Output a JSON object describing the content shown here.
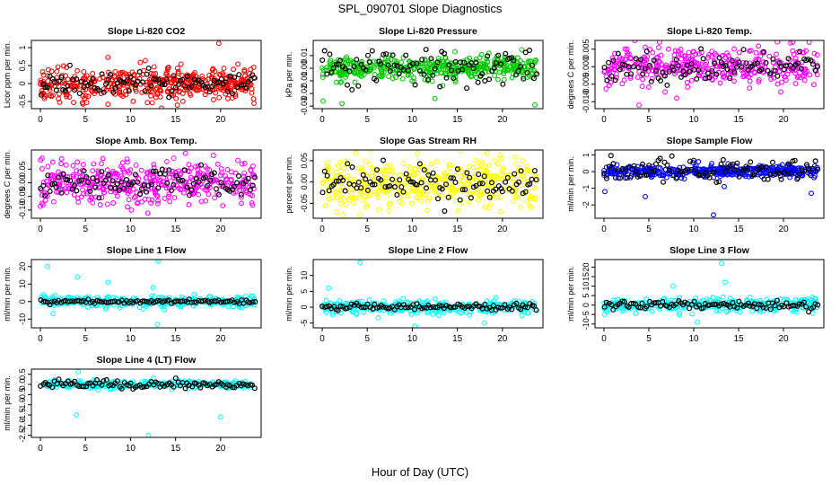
{
  "figure": {
    "title": "SPL_090701  Slope Diagnostics",
    "xlabel": "Hour of Day (UTC)"
  },
  "chart_data": [
    {
      "type": "scatter",
      "title": "Slope Li-820 CO2",
      "ylabel": "Licor ppm per min.",
      "color": "#ff0000",
      "xlim": [
        -1,
        24.5
      ],
      "ylim": [
        -0.7,
        1.2
      ],
      "xticks": [
        0,
        5,
        10,
        15,
        20
      ],
      "yticks": [
        -0.5,
        0,
        0.5,
        1
      ],
      "ytick_labels": [
        "-0.5",
        "0",
        "0.5",
        "1"
      ],
      "noise": 0.22,
      "n": 420,
      "outliers": [
        {
          "x": 19.8,
          "y": 1.12
        },
        {
          "x": 7.5,
          "y": -0.58
        },
        {
          "x": 15.2,
          "y": -0.6
        },
        {
          "x": 23.7,
          "y": -0.55
        }
      ],
      "black_noise": 0.16
    },
    {
      "type": "scatter",
      "title": "Slope Li-820 Pressure",
      "ylabel": "kPa per min.",
      "color": "#00cc00",
      "xlim": [
        -1,
        24.5
      ],
      "ylim": [
        -0.032,
        0.022
      ],
      "xticks": [
        0,
        5,
        10,
        15,
        20
      ],
      "yticks": [
        -0.03,
        -0.02,
        -0.01,
        0,
        0.01
      ],
      "ytick_labels": [
        "-0.03",
        "-0.02",
        "-0.01",
        "0.00",
        "0.01"
      ],
      "noise": 0.0045,
      "n": 420,
      "outliers": [
        {
          "x": 0.1,
          "y": -0.026
        },
        {
          "x": 2.2,
          "y": -0.028
        },
        {
          "x": 23.6,
          "y": -0.029
        },
        {
          "x": 12.5,
          "y": -0.024
        }
      ],
      "black_noise": 0.007
    },
    {
      "type": "scatter",
      "title": "Slope Li-820 Temp.",
      "ylabel": "degrees C per min.",
      "color": "#ff00ff",
      "xlim": [
        -1,
        24.5
      ],
      "ylim": [
        -0.012,
        0.0075
      ],
      "xticks": [
        0,
        5,
        10,
        15,
        20
      ],
      "yticks": [
        -0.01,
        -0.005,
        0,
        0.005
      ],
      "ytick_labels": [
        "-0.010",
        "-0.005",
        "0.000",
        "0.005"
      ],
      "noise": 0.0026,
      "n": 380,
      "outliers": [
        {
          "x": 6.2,
          "y": 0.007
        },
        {
          "x": 3.9,
          "y": -0.011
        },
        {
          "x": 8.1,
          "y": -0.009
        }
      ],
      "black_noise": 0.0022
    },
    {
      "type": "scatter",
      "title": "Slope Amb. Box Temp.",
      "ylabel": "degrees C per min.",
      "color": "#ff00ff",
      "xlim": [
        -1,
        24.5
      ],
      "ylim": [
        -0.13,
        0.12
      ],
      "xticks": [
        0,
        5,
        10,
        15,
        20
      ],
      "yticks": [
        -0.1,
        -0.05,
        0,
        0.05
      ],
      "ytick_labels": [
        "-0.10",
        "-0.05",
        "0.00",
        "0.05"
      ],
      "noise": 0.038,
      "n": 400,
      "outliers": [
        {
          "x": 0.2,
          "y": 0.09
        },
        {
          "x": 19.2,
          "y": 0.1
        },
        {
          "x": 10.1,
          "y": -0.1
        }
      ],
      "black_noise": 0.03
    },
    {
      "type": "scatter",
      "title": "Slope Gas Stream RH",
      "ylabel": "percent per min.",
      "color": "#ffff00",
      "xlim": [
        -1,
        24.5
      ],
      "ylim": [
        -0.085,
        0.075
      ],
      "xticks": [
        0,
        5,
        10,
        15,
        20
      ],
      "yticks": [
        -0.05,
        0,
        0.05
      ],
      "ytick_labels": [
        "-0.05",
        "0.00",
        "0.05"
      ],
      "noise": 0.028,
      "n": 400,
      "outliers": [
        {
          "x": 18.3,
          "y": 0.068
        },
        {
          "x": 4.2,
          "y": -0.078
        },
        {
          "x": 23.2,
          "y": -0.06
        }
      ],
      "black_noise": 0.02
    },
    {
      "type": "scatter",
      "title": "Slope Sample Flow",
      "ylabel": "ml/min per min.",
      "color": "#0000ff",
      "xlim": [
        -1,
        24.5
      ],
      "ylim": [
        -2.8,
        1.3
      ],
      "xticks": [
        0,
        5,
        10,
        15,
        20
      ],
      "yticks": [
        -2,
        -1,
        0,
        1
      ],
      "ytick_labels": [
        "-2",
        "-1",
        "0",
        "1"
      ],
      "noise": 0.18,
      "n": 400,
      "outliers": [
        {
          "x": 0.1,
          "y": -1.2
        },
        {
          "x": 12.2,
          "y": -2.6
        },
        {
          "x": 4.6,
          "y": -1.5
        },
        {
          "x": 23.1,
          "y": -1.3
        },
        {
          "x": 13.4,
          "y": -0.9
        }
      ],
      "black_noise": 0.35
    },
    {
      "type": "scatter",
      "title": "Slope Line 1 Flow",
      "ylabel": "ml/min per min.",
      "color": "#00ffff",
      "xlim": [
        -1,
        24.5
      ],
      "ylim": [
        -15,
        24
      ],
      "xticks": [
        0,
        5,
        10,
        15,
        20
      ],
      "yticks": [
        -10,
        0,
        10,
        20
      ],
      "ytick_labels": [
        "-10",
        "0",
        "10",
        "20"
      ],
      "noise": 1.6,
      "n": 300,
      "outliers": [
        {
          "x": 0.8,
          "y": 20
        },
        {
          "x": 4.1,
          "y": 14
        },
        {
          "x": 13.1,
          "y": 23
        },
        {
          "x": 13.0,
          "y": -13
        },
        {
          "x": 12.5,
          "y": 8
        },
        {
          "x": 7.5,
          "y": 11
        },
        {
          "x": 1.4,
          "y": -7
        }
      ],
      "black_noise": 0.5
    },
    {
      "type": "scatter",
      "title": "Slope Line 2 Flow",
      "ylabel": "ml/min per min.",
      "color": "#00ffff",
      "xlim": [
        -1,
        24.5
      ],
      "ylim": [
        -6.5,
        15
      ],
      "xticks": [
        0,
        5,
        10,
        15,
        20
      ],
      "yticks": [
        -5,
        0,
        5,
        10
      ],
      "ytick_labels": [
        "-5",
        "0",
        "5",
        "10"
      ],
      "noise": 1.1,
      "n": 300,
      "outliers": [
        {
          "x": 4.2,
          "y": 14
        },
        {
          "x": 10.3,
          "y": -6
        },
        {
          "x": 0.7,
          "y": 6
        },
        {
          "x": 18.0,
          "y": -5
        }
      ],
      "black_noise": 0.5
    },
    {
      "type": "scatter",
      "title": "Slope Line 3 Flow",
      "ylabel": "ml/min per min.",
      "color": "#00ffff",
      "xlim": [
        -1,
        24.5
      ],
      "ylim": [
        -12,
        24
      ],
      "xticks": [
        0,
        5,
        10,
        15,
        20
      ],
      "yticks": [
        -10,
        -5,
        0,
        5,
        10,
        15,
        20
      ],
      "ytick_labels": [
        "-10",
        "-5",
        "0",
        "5",
        "10",
        "15",
        "20"
      ],
      "noise": 1.8,
      "n": 300,
      "outliers": [
        {
          "x": 13.1,
          "y": 22
        },
        {
          "x": 7.7,
          "y": 10
        },
        {
          "x": 13.5,
          "y": 12
        },
        {
          "x": 10.4,
          "y": -9
        }
      ],
      "black_noise": 1.0
    },
    {
      "type": "scatter",
      "title": "Slope Line 4 (LT) Flow",
      "ylabel": "ml/min per min.",
      "color": "#00ffff",
      "xlim": [
        -1,
        24.5
      ],
      "ylim": [
        -2.6,
        0.75
      ],
      "xticks": [
        0,
        5,
        10,
        15,
        20
      ],
      "yticks": [
        -2.5,
        -2,
        -1.5,
        -1,
        -0.5,
        0,
        0.5
      ],
      "ytick_labels": [
        "-2.5",
        "-2.0",
        "-1.5",
        "-1.0",
        "-0.5",
        "0.0",
        "0.5"
      ],
      "noise": 0.09,
      "n": 300,
      "outliers": [
        {
          "x": 4.2,
          "y": 0.62
        },
        {
          "x": 4.0,
          "y": -1.5
        },
        {
          "x": 20.0,
          "y": -1.6
        },
        {
          "x": 12.0,
          "y": -2.5
        }
      ],
      "black_noise": 0.1
    }
  ]
}
